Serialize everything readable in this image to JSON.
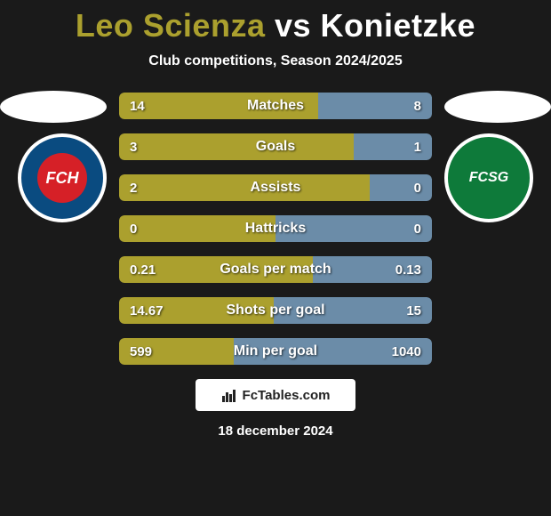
{
  "title": {
    "player1": "Leo Scienza",
    "vs": "vs",
    "player2": "Konietzke"
  },
  "subtitle": "Club competitions, Season 2024/2025",
  "colors": {
    "player1_bar": "#aba02e",
    "player2_bar": "#6b8ca8",
    "background": "#1a1a1a",
    "bar_track": "#2a2a2a"
  },
  "club_badges": {
    "left": {
      "name": "FC Heidenheim",
      "short": "FCH",
      "primary": "#0a4b80",
      "accent": "#d62027"
    },
    "right": {
      "name": "FC St. Gallen",
      "short": "FCSG",
      "primary": "#0e7a3a"
    }
  },
  "stats": [
    {
      "label": "Matches",
      "left_val": "14",
      "right_val": "8",
      "left_pct": 63.6,
      "right_pct": 36.4
    },
    {
      "label": "Goals",
      "left_val": "3",
      "right_val": "1",
      "left_pct": 75.0,
      "right_pct": 25.0
    },
    {
      "label": "Assists",
      "left_val": "2",
      "right_val": "0",
      "left_pct": 80.0,
      "right_pct": 20.0
    },
    {
      "label": "Hattricks",
      "left_val": "0",
      "right_val": "0",
      "left_pct": 50.0,
      "right_pct": 50.0
    },
    {
      "label": "Goals per match",
      "left_val": "0.21",
      "right_val": "0.13",
      "left_pct": 61.8,
      "right_pct": 38.2
    },
    {
      "label": "Shots per goal",
      "left_val": "14.67",
      "right_val": "15",
      "left_pct": 49.4,
      "right_pct": 50.6
    },
    {
      "label": "Min per goal",
      "left_val": "599",
      "right_val": "1040",
      "left_pct": 36.6,
      "right_pct": 63.4
    }
  ],
  "watermark": "FcTables.com",
  "date": "18 december 2024"
}
